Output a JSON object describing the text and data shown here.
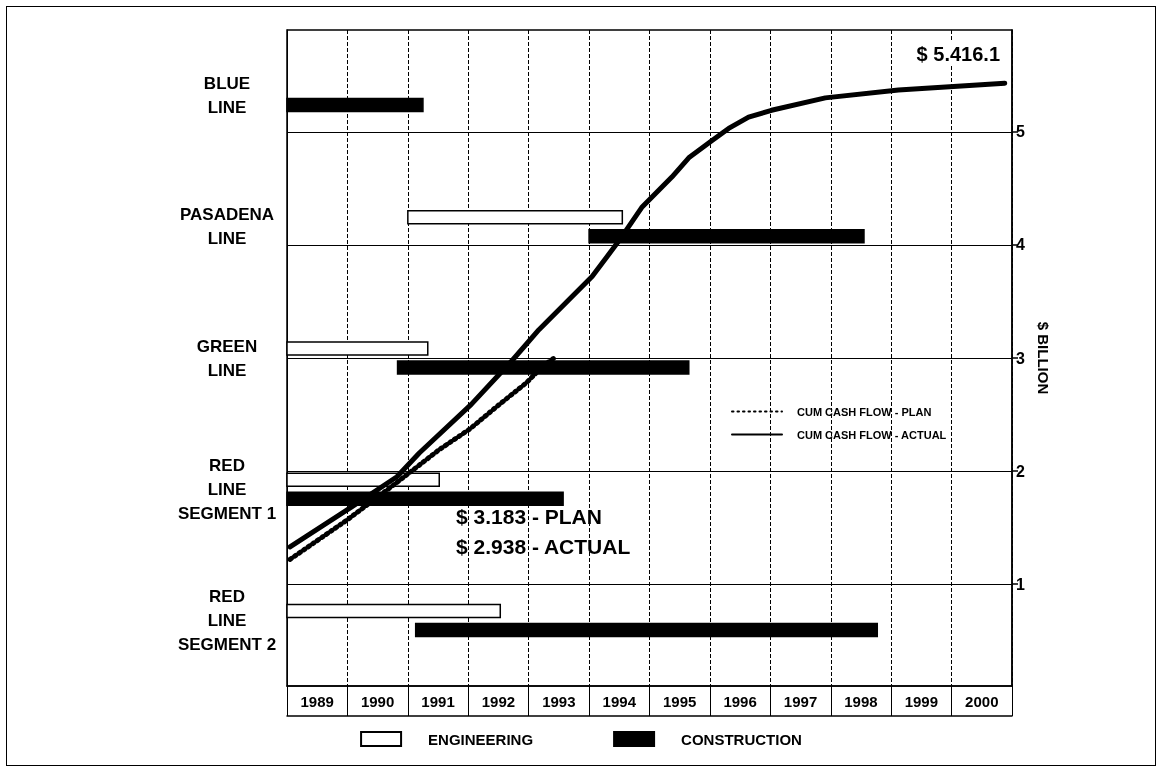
{
  "chart_data": [
    {
      "type": "bar",
      "orientation": "horizontal",
      "categories": [
        "BLUE LINE",
        "PASADENA LINE",
        "GREEN LINE",
        "RED LINE SEGMENT 1",
        "RED LINE SEGMENT 2"
      ],
      "xlim": [
        1989,
        2001
      ],
      "xticks": [
        {
          "value": 1989.5,
          "label": "1989"
        },
        {
          "value": 1990.5,
          "label": "1990"
        },
        {
          "value": 1991.5,
          "label": "1991"
        },
        {
          "value": 1992.5,
          "label": "1992"
        },
        {
          "value": 1993.5,
          "label": "1993"
        },
        {
          "value": 1994.5,
          "label": "1994"
        },
        {
          "value": 1995.5,
          "label": "1995"
        },
        {
          "value": 1996.5,
          "label": "1996"
        },
        {
          "value": 1997.5,
          "label": "1997"
        },
        {
          "value": 1998.5,
          "label": "1998"
        },
        {
          "value": 1999.5,
          "label": "1999"
        },
        {
          "value": 2000.5,
          "label": "2000"
        }
      ],
      "series": [
        {
          "name": "ENGINEERING",
          "color": "#ffffff",
          "base": [
            null,
            1991.0,
            1989,
            1989,
            1989
          ],
          "values": [
            null,
            3.55,
            2.33,
            2.52,
            3.53
          ]
        },
        {
          "name": "CONSTRUCTION",
          "color": "#000000",
          "base": [
            1989,
            1994.0,
            1990.83,
            1989,
            1991.13
          ],
          "values": [
            2.25,
            4.55,
            4.82,
            4.57,
            7.64
          ]
        }
      ],
      "grid": "x",
      "legend": "bottom"
    },
    {
      "type": "line",
      "xlim": [
        1989,
        2001
      ],
      "ylim": [
        0.1,
        5.9
      ],
      "yticks": [
        1,
        2,
        3,
        4,
        5
      ],
      "ylabel": "$ BILLION",
      "series": [
        {
          "name": "CUM CASH FLOW - PLAN",
          "line_style": "dotted",
          "color": "#000000",
          "x": [
            1989.05,
            1990.0,
            1990.82,
            1991.52,
            1992.02,
            1992.47,
            1992.96,
            1993.22,
            1993.42
          ],
          "values": [
            1.22,
            1.57,
            1.9,
            2.19,
            2.37,
            2.57,
            2.78,
            2.92,
            3.0
          ]
        },
        {
          "name": "CUM CASH FLOW - ACTUAL",
          "line_style": "solid",
          "color": "#000000",
          "x": [
            1989.05,
            1990.09,
            1990.82,
            1991.19,
            1992.05,
            1992.73,
            1993.17,
            1994.05,
            1994.5,
            1994.87,
            1995.37,
            1995.65,
            1996.03,
            1996.31,
            1996.64,
            1997.02,
            1997.91,
            1999.12,
            2000.88
          ],
          "values": [
            1.33,
            1.69,
            1.95,
            2.16,
            2.59,
            2.98,
            3.25,
            3.72,
            4.04,
            4.33,
            4.6,
            4.77,
            4.92,
            5.03,
            5.13,
            5.19,
            5.3,
            5.37,
            5.43
          ]
        }
      ],
      "annotations": [
        "$ 5.416.1",
        "$ 3.183 - PLAN",
        "$ 2.938 - ACTUAL"
      ],
      "marker": "none",
      "grid": "y",
      "legend": "right",
      "tick_labels": "y"
    }
  ]
}
